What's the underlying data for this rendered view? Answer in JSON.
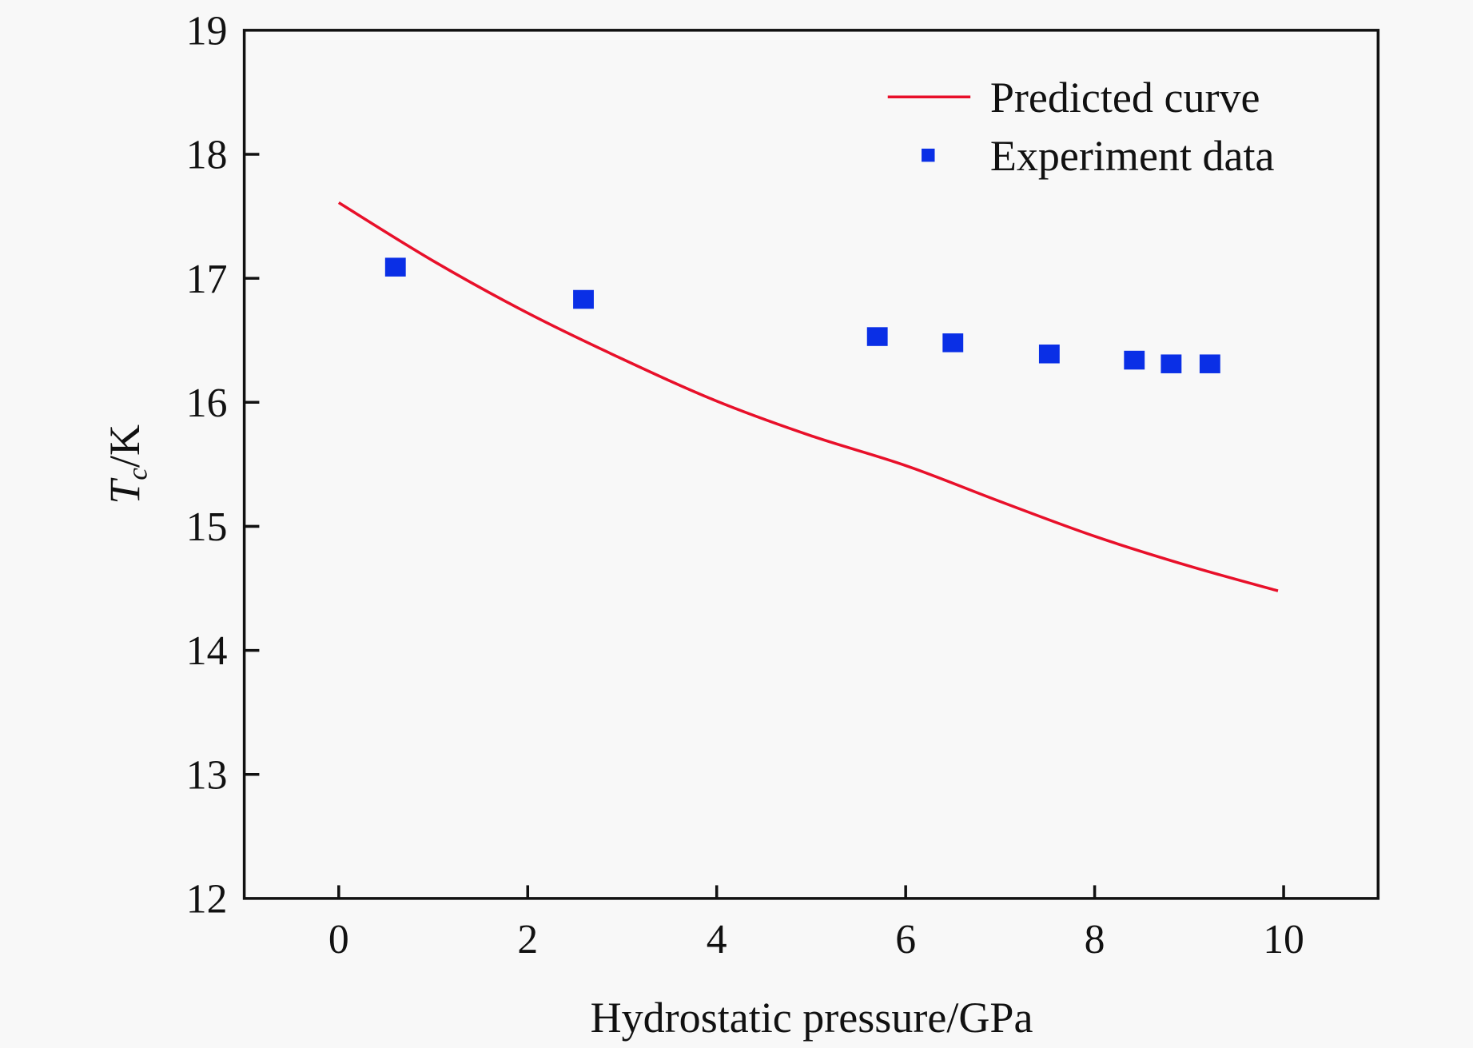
{
  "chart_data": {
    "type": "line",
    "title": "",
    "xlabel": "Hydrostatic pressure/GPa",
    "ylabel": {
      "main": "T",
      "subscript": "c",
      "suffix": "/K"
    },
    "xlim": [
      -1,
      11
    ],
    "ylim": [
      12,
      19
    ],
    "xticks": [
      0,
      2,
      4,
      6,
      8,
      10
    ],
    "yticks": [
      12,
      13,
      14,
      15,
      16,
      17,
      18,
      19
    ],
    "xtick_labels": [
      "0",
      "2",
      "4",
      "6",
      "8",
      "10"
    ],
    "ytick_labels": [
      "12",
      "13",
      "14",
      "15",
      "16",
      "17",
      "18",
      "19"
    ],
    "grid": false,
    "legend_position": "top-right",
    "series": [
      {
        "name": "Predicted curve",
        "kind": "line",
        "color": "#e8102a",
        "x": [
          0,
          1,
          2,
          3,
          4,
          5,
          6,
          7,
          8,
          9,
          9.94
        ],
        "y": [
          17.61,
          17.14,
          16.72,
          16.35,
          16.01,
          15.73,
          15.49,
          15.2,
          14.92,
          14.68,
          14.48
        ]
      },
      {
        "name": "Experiment data",
        "kind": "scatter",
        "marker": "square",
        "color": "#0a2fe6",
        "x": [
          0.6,
          2.59,
          5.7,
          6.5,
          7.52,
          8.42,
          8.81,
          9.22
        ],
        "y": [
          17.09,
          16.83,
          16.53,
          16.48,
          16.39,
          16.34,
          16.31,
          16.31
        ]
      }
    ]
  }
}
